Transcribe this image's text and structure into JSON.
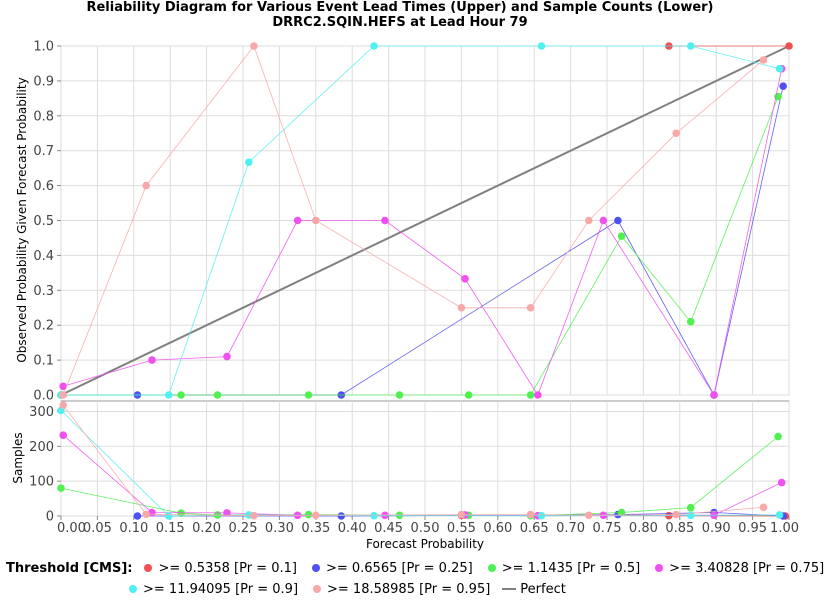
{
  "title": "Reliability Diagram for Various Event Lead Times (Upper) and Sample Counts (Lower)",
  "subtitle": "DRRC2.SQIN.HEFS at Lead Hour 79",
  "legend": {
    "title": "Threshold [CMS]:",
    "items": [
      {
        "label": ">= 0.5358 [Pr = 0.1]",
        "color": "#f05050"
      },
      {
        "label": ">= 0.6565 [Pr = 0.25]",
        "color": "#5050f0"
      },
      {
        "label": ">= 1.1435 [Pr = 0.5]",
        "color": "#50f050"
      },
      {
        "label": ">= 3.40828 [Pr = 0.75]",
        "color": "#f050f0"
      },
      {
        "label": ">= 11.94095 [Pr = 0.9]",
        "color": "#50f0f0"
      },
      {
        "label": ">= 18.58985 [Pr = 0.95]",
        "color": "#f8a8a8"
      },
      {
        "label": "Perfect",
        "color": "#808080",
        "line": true
      }
    ]
  },
  "chart_data": [
    {
      "type": "line",
      "ylabel": "Observed Probability Given Forecast Probability",
      "xlim": [
        0.0,
        1.0
      ],
      "ylim": [
        0.0,
        1.0
      ],
      "yticks": [
        "0.0",
        "0.1",
        "0.2",
        "0.3",
        "0.4",
        "0.5",
        "0.6",
        "0.7",
        "0.8",
        "0.9",
        "1.0"
      ],
      "grid": true,
      "perfect": {
        "name": "Perfect",
        "x": [
          0,
          1
        ],
        "y": [
          0,
          1
        ],
        "color": "#808080"
      },
      "series": [
        {
          "name": ">= 0.5358 [Pr = 0.1]",
          "color": "#f05050",
          "x": [
            0.835,
            1.0
          ],
          "y": [
            1.0,
            1.0
          ]
        },
        {
          "name": ">= 0.6565 [Pr = 0.25]",
          "color": "#5050f0",
          "x": [
            0.0,
            0.105,
            0.385,
            0.765,
            0.897,
            0.992
          ],
          "y": [
            0.0,
            0.0,
            0.0,
            0.5,
            0.0,
            0.885
          ]
        },
        {
          "name": ">= 1.1435 [Pr = 0.5]",
          "color": "#50f050",
          "x": [
            0.0,
            0.165,
            0.215,
            0.34,
            0.465,
            0.56,
            0.645,
            0.77,
            0.865,
            0.985
          ],
          "y": [
            0.0,
            0.0,
            0.0,
            0.0,
            0.0,
            0.0,
            0.0,
            0.455,
            0.21,
            0.855
          ]
        },
        {
          "name": ">= 3.40828 [Pr = 0.75]",
          "color": "#f050f0",
          "x": [
            0.003,
            0.125,
            0.228,
            0.325,
            0.445,
            0.555,
            0.655,
            0.745,
            0.897,
            0.99
          ],
          "y": [
            0.025,
            0.1,
            0.11,
            0.5,
            0.5,
            0.333,
            0.0,
            0.5,
            0.0,
            0.935
          ]
        },
        {
          "name": ">= 11.94095 [Pr = 0.9]",
          "color": "#50f0f0",
          "x": [
            0.0,
            0.148,
            0.258,
            0.43,
            0.66,
            0.865,
            0.987
          ],
          "y": [
            0.0,
            0.0,
            0.667,
            1.0,
            1.0,
            1.0,
            0.935
          ]
        },
        {
          "name": ">= 18.58985 [Pr = 0.95]",
          "color": "#f8a8a8",
          "x": [
            0.003,
            0.117,
            0.265,
            0.35,
            0.55,
            0.645,
            0.725,
            0.845,
            0.965
          ],
          "y": [
            0.0,
            0.6,
            1.0,
            0.5,
            0.25,
            0.25,
            0.5,
            0.75,
            0.96
          ]
        }
      ]
    },
    {
      "type": "line",
      "xlabel": "Forecast Probability",
      "ylabel": "Samples",
      "xlim": [
        0.0,
        1.0
      ],
      "ylim": [
        0,
        330
      ],
      "yticks": [
        "0",
        "100",
        "200",
        "300"
      ],
      "xticks": [
        "0.00",
        "0.05",
        "0.10",
        "0.15",
        "0.20",
        "0.25",
        "0.30",
        "0.35",
        "0.40",
        "0.45",
        "0.50",
        "0.55",
        "0.60",
        "0.65",
        "0.70",
        "0.75",
        "0.80",
        "0.85",
        "0.90",
        "0.95",
        "1.00"
      ],
      "grid": true,
      "series": [
        {
          "name": ">= 0.5358 [Pr = 0.1]",
          "color": "#f05050",
          "x": [
            0.55,
            0.835,
            0.995
          ],
          "y": [
            2,
            1,
            0
          ]
        },
        {
          "name": ">= 0.6565 [Pr = 0.25]",
          "color": "#5050f0",
          "x": [
            0.105,
            0.385,
            0.765,
            0.897,
            0.992
          ],
          "y": [
            0,
            0,
            4,
            10,
            0
          ]
        },
        {
          "name": ">= 1.1435 [Pr = 0.5]",
          "color": "#50f050",
          "x": [
            0.0,
            0.165,
            0.215,
            0.34,
            0.465,
            0.56,
            0.645,
            0.77,
            0.865,
            0.985
          ],
          "y": [
            80,
            8,
            3,
            4,
            2,
            2,
            1,
            10,
            24,
            228
          ]
        },
        {
          "name": ">= 3.40828 [Pr = 0.75]",
          "color": "#f050f0",
          "x": [
            0.003,
            0.125,
            0.228,
            0.325,
            0.445,
            0.555,
            0.655,
            0.745,
            0.897,
            0.99
          ],
          "y": [
            232,
            10,
            9,
            2,
            2,
            3,
            1,
            2,
            2,
            96
          ]
        },
        {
          "name": ">= 11.94095 [Pr = 0.9]",
          "color": "#50f0f0",
          "x": [
            0.0,
            0.148,
            0.258,
            0.43,
            0.66,
            0.865,
            0.987
          ],
          "y": [
            303,
            0,
            3,
            1,
            1,
            2,
            3
          ]
        },
        {
          "name": ">= 18.58985 [Pr = 0.95]",
          "color": "#f8a8a8",
          "x": [
            0.003,
            0.117,
            0.265,
            0.35,
            0.55,
            0.645,
            0.725,
            0.845,
            0.965
          ],
          "y": [
            318,
            5,
            1,
            2,
            4,
            4,
            2,
            4,
            25
          ]
        }
      ]
    }
  ]
}
